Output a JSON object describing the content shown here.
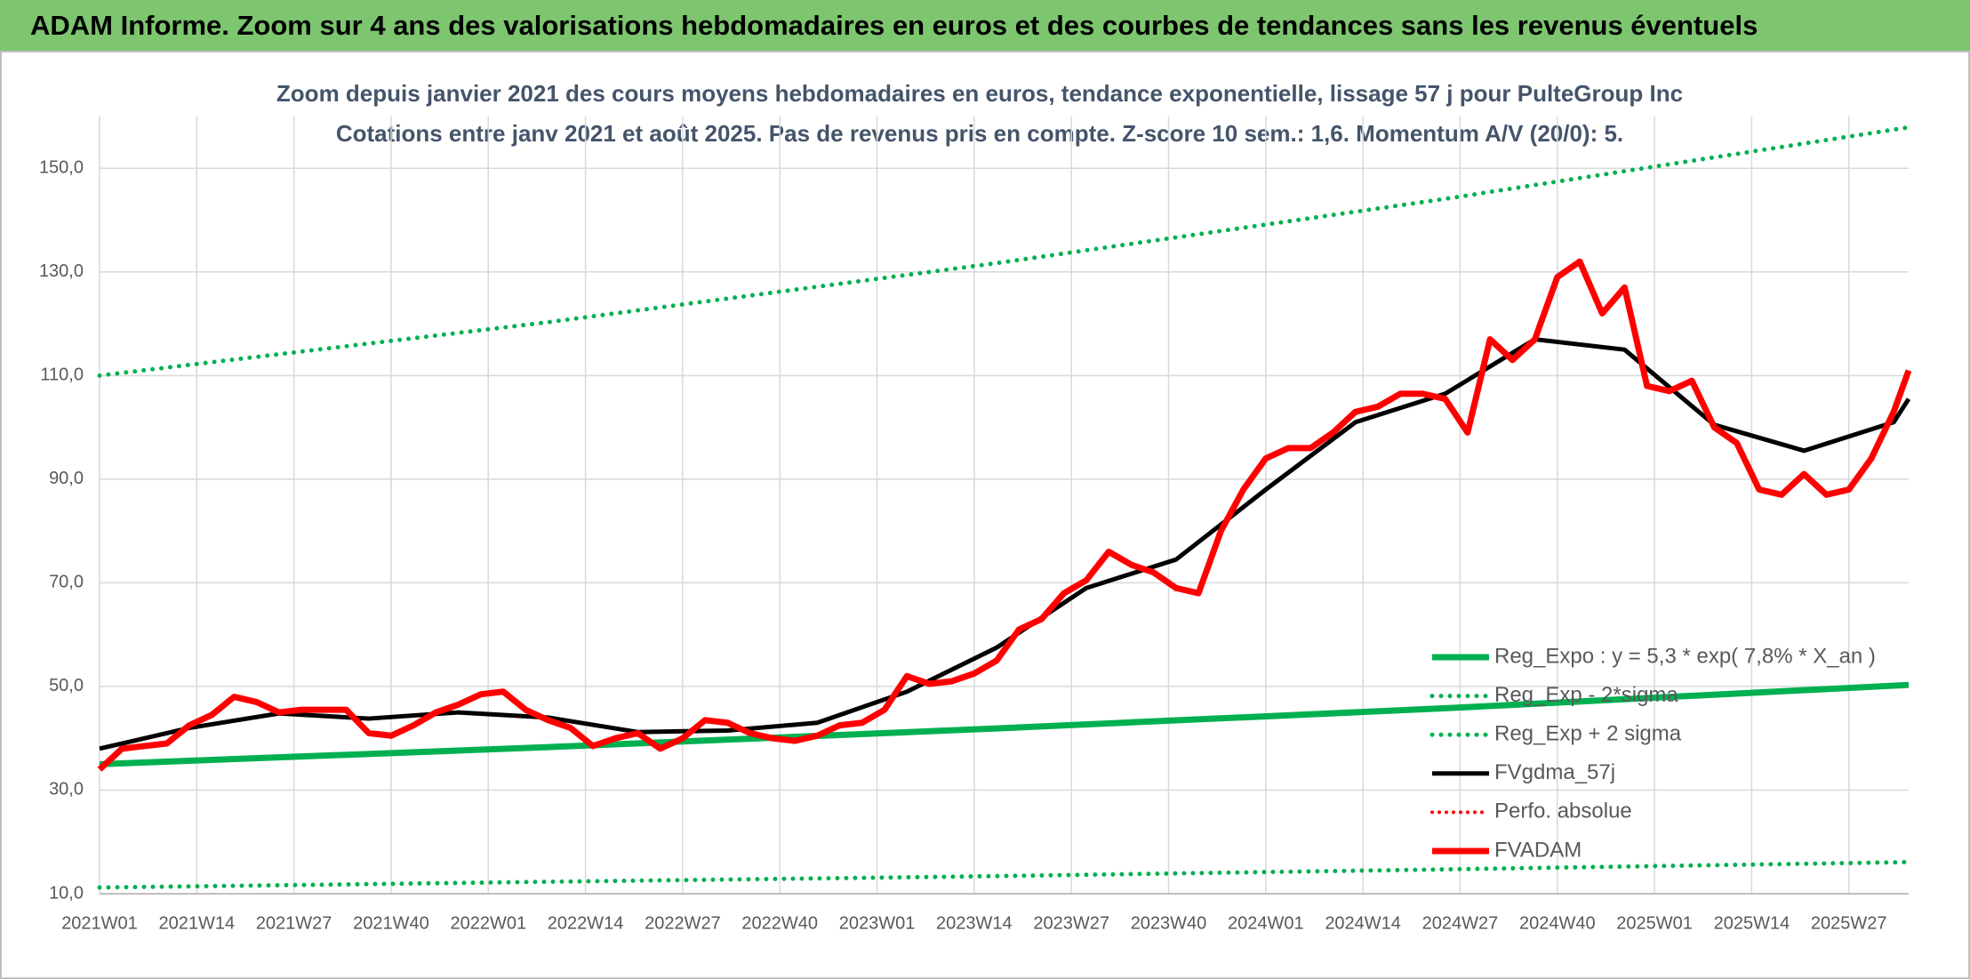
{
  "header": {
    "title": "ADAM Informe. Zoom sur 4 ans des valorisations hebdomadaires en euros et des courbes de tendances sans les revenus éventuels"
  },
  "chart_data": {
    "type": "line",
    "title": "Zoom depuis janvier 2021 des cours moyens hebdomadaires en euros, tendance exponentielle, lissage 57 j pour PulteGroup Inc",
    "subtitle": "Cotations entre janv 2021 et août 2025. Pas de revenus pris en compte. Z-score 10 sem.: 1,6. Momentum A/V (20/0): 5.",
    "xlim": [
      0,
      242
    ],
    "xticks": [
      {
        "value": 0,
        "label": "2021W01"
      },
      {
        "value": 13,
        "label": "2021W14"
      },
      {
        "value": 26,
        "label": "2021W27"
      },
      {
        "value": 39,
        "label": "2021W40"
      },
      {
        "value": 52,
        "label": "2022W01"
      },
      {
        "value": 65,
        "label": "2022W14"
      },
      {
        "value": 78,
        "label": "2022W27"
      },
      {
        "value": 91,
        "label": "2022W40"
      },
      {
        "value": 104,
        "label": "2023W01"
      },
      {
        "value": 117,
        "label": "2023W14"
      },
      {
        "value": 130,
        "label": "2023W27"
      },
      {
        "value": 143,
        "label": "2023W40"
      },
      {
        "value": 156,
        "label": "2024W01"
      },
      {
        "value": 169,
        "label": "2024W14"
      },
      {
        "value": 182,
        "label": "2024W27"
      },
      {
        "value": 195,
        "label": "2024W40"
      },
      {
        "value": 208,
        "label": "2025W01"
      },
      {
        "value": 221,
        "label": "2025W14"
      },
      {
        "value": 234,
        "label": "2025W27"
      }
    ],
    "ylim": [
      10,
      160
    ],
    "yticks": [
      {
        "value": 10,
        "label": "10,0"
      },
      {
        "value": 30,
        "label": "30,0"
      },
      {
        "value": 50,
        "label": "50,0"
      },
      {
        "value": 70,
        "label": "70,0"
      },
      {
        "value": 90,
        "label": "90,0"
      },
      {
        "value": 110,
        "label": "110,0"
      },
      {
        "value": 130,
        "label": "130,0"
      },
      {
        "value": 150,
        "label": "150,0"
      }
    ],
    "grid": true,
    "legend": "lower right",
    "series": [
      {
        "name": "Reg_Expo : y = 5,3 * exp( 7,8% *  X_an )",
        "color": "#00b050",
        "style": "solid",
        "width": 7,
        "x": [
          0,
          60,
          120,
          180,
          242
        ],
        "values": [
          35,
          38.3,
          41.9,
          45.8,
          50.3
        ]
      },
      {
        "name": "Reg_Exp - 2*sigma",
        "color": "#00b050",
        "style": "dotted",
        "width": 5,
        "x": [
          0,
          60,
          120,
          180,
          242
        ],
        "values": [
          11.2,
          12.3,
          13.4,
          14.7,
          16.1
        ]
      },
      {
        "name": "Reg_Exp + 2 sigma",
        "color": "#00b050",
        "style": "dotted",
        "width": 5,
        "x": [
          0,
          60,
          120,
          180,
          242
        ],
        "values": [
          110,
          120.3,
          131.7,
          144.1,
          157.9
        ]
      },
      {
        "name": "FVgdma_57j",
        "color": "#000000",
        "style": "solid",
        "width": 5,
        "x": [
          0,
          12,
          24,
          36,
          48,
          60,
          72,
          84,
          96,
          108,
          120,
          132,
          144,
          156,
          168,
          180,
          192,
          204,
          216,
          228,
          240,
          242
        ],
        "values": [
          38,
          42,
          44.8,
          43.8,
          45,
          44,
          41.2,
          41.5,
          43,
          49,
          57.5,
          69,
          74.5,
          88,
          101,
          106.5,
          117,
          115,
          100.5,
          95.5,
          101,
          105.5
        ]
      },
      {
        "name": "Perfo. absolue",
        "color": "#ff0000",
        "style": "dotted",
        "width": 4
      },
      {
        "name": "FVADAM",
        "color": "#ff0000",
        "style": "solid",
        "width": 7,
        "x": [
          0,
          3,
          6,
          9,
          12,
          15,
          18,
          21,
          24,
          27,
          30,
          33,
          36,
          39,
          42,
          45,
          48,
          51,
          54,
          57,
          60,
          63,
          66,
          69,
          72,
          75,
          78,
          81,
          84,
          87,
          90,
          93,
          96,
          99,
          102,
          105,
          108,
          111,
          114,
          117,
          120,
          123,
          126,
          129,
          132,
          135,
          138,
          141,
          144,
          147,
          150,
          153,
          156,
          159,
          162,
          165,
          168,
          171,
          174,
          177,
          180,
          183,
          186,
          189,
          192,
          195,
          198,
          201,
          204,
          207,
          210,
          213,
          216,
          219,
          222,
          225,
          228,
          231,
          234,
          237,
          240,
          242
        ],
        "values": [
          34,
          38,
          38.5,
          39,
          42.5,
          44.5,
          48,
          47,
          45,
          45.5,
          45.5,
          45.5,
          41,
          40.5,
          42.5,
          45,
          46.5,
          48.5,
          49,
          45.5,
          43.5,
          42,
          38.5,
          40,
          41,
          38,
          40,
          43.5,
          43,
          41,
          40,
          39.5,
          40.5,
          42.5,
          43,
          45.5,
          52,
          50.5,
          51,
          52.5,
          55,
          61,
          63,
          68,
          70.5,
          76,
          73.5,
          72,
          69,
          68,
          80,
          88,
          94,
          96,
          96,
          99,
          103,
          104,
          106.5,
          106.5,
          105.5,
          99,
          117,
          113,
          117,
          129,
          132,
          122,
          127,
          108,
          107,
          109,
          100,
          97,
          88,
          87,
          91,
          87,
          88,
          94,
          103,
          111
        ]
      }
    ]
  }
}
